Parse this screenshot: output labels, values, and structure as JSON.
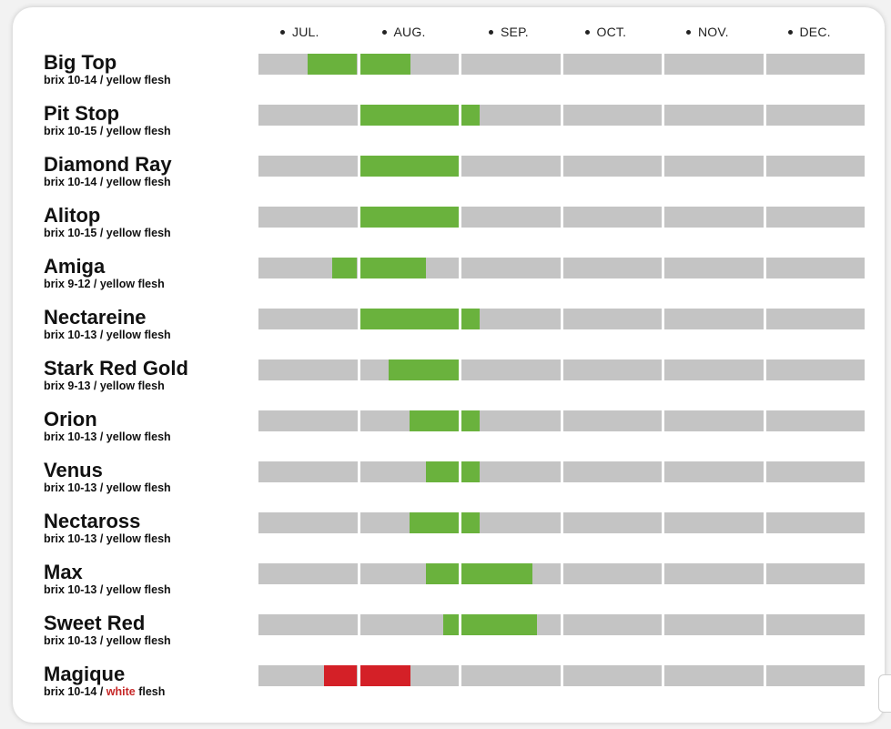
{
  "months": [
    "JUL.",
    "AUG.",
    "SEP.",
    "OCT.",
    "NOV.",
    "DEC."
  ],
  "colors": {
    "track": "#c4c4c4",
    "yellow_flesh": "#6ab23d",
    "white_flesh": "#d42027"
  },
  "chart_data": {
    "type": "table",
    "title": "",
    "x_unit": "month",
    "categories": [
      "JUL.",
      "AUG.",
      "SEP.",
      "OCT.",
      "NOV.",
      "DEC."
    ],
    "series": [
      {
        "name": "Big Top",
        "brix_label": "brix",
        "brix": "10-14",
        "separator": "/",
        "flesh_color": "yellow",
        "flesh_word": "flesh",
        "harvest_start": 0.48,
        "harvest_end": 1.5
      },
      {
        "name": "Pit Stop",
        "brix_label": "brix",
        "brix": "10-15",
        "separator": "/",
        "flesh_color": "yellow",
        "flesh_word": "flesh",
        "harvest_start": 1.0,
        "harvest_end": 2.18
      },
      {
        "name": "Diamond Ray",
        "brix_label": "brix",
        "brix": "10-14",
        "separator": "/",
        "flesh_color": "yellow",
        "flesh_word": "flesh",
        "harvest_start": 1.0,
        "harvest_end": 2.0
      },
      {
        "name": "Alitop",
        "brix_label": "brix",
        "brix": "10-15",
        "separator": "/",
        "flesh_color": "yellow",
        "flesh_word": "flesh",
        "harvest_start": 1.0,
        "harvest_end": 2.0
      },
      {
        "name": "Amiga",
        "brix_label": "brix",
        "brix": "9-12",
        "separator": "/",
        "flesh_color": "yellow",
        "flesh_word": "flesh",
        "harvest_start": 0.73,
        "harvest_end": 1.65
      },
      {
        "name": "Nectareine",
        "brix_label": "brix",
        "brix": "10-13",
        "separator": "/",
        "flesh_color": "yellow",
        "flesh_word": "flesh",
        "harvest_start": 1.0,
        "harvest_end": 2.18
      },
      {
        "name": "Stark Red Gold",
        "brix_label": "brix",
        "brix": "9-13",
        "separator": "/",
        "flesh_color": "yellow",
        "flesh_word": "flesh",
        "harvest_start": 1.28,
        "harvest_end": 2.0
      },
      {
        "name": "Orion",
        "brix_label": "brix",
        "brix": "10-13",
        "separator": "/",
        "flesh_color": "yellow",
        "flesh_word": "flesh",
        "harvest_start": 1.49,
        "harvest_end": 2.18
      },
      {
        "name": "Venus",
        "brix_label": "brix",
        "brix": "10-13",
        "separator": "/",
        "flesh_color": "yellow",
        "flesh_word": "flesh",
        "harvest_start": 1.65,
        "harvest_end": 2.18
      },
      {
        "name": "Nectaross",
        "brix_label": "brix",
        "brix": "10-13",
        "separator": "/",
        "flesh_color": "yellow",
        "flesh_word": "flesh",
        "harvest_start": 1.49,
        "harvest_end": 2.18
      },
      {
        "name": "Max",
        "brix_label": "brix",
        "brix": "10-13",
        "separator": "/",
        "flesh_color": "yellow",
        "flesh_word": "flesh",
        "harvest_start": 1.65,
        "harvest_end": 2.7
      },
      {
        "name": "Sweet Red",
        "brix_label": "brix",
        "brix": "10-13",
        "separator": "/",
        "flesh_color": "yellow",
        "flesh_word": "flesh",
        "harvest_start": 1.82,
        "harvest_end": 2.74
      },
      {
        "name": "Magique",
        "brix_label": "brix",
        "brix": "10-14",
        "separator": "/",
        "flesh_color": "white",
        "flesh_word": "flesh",
        "harvest_start": 0.65,
        "harvest_end": 1.5
      }
    ]
  }
}
